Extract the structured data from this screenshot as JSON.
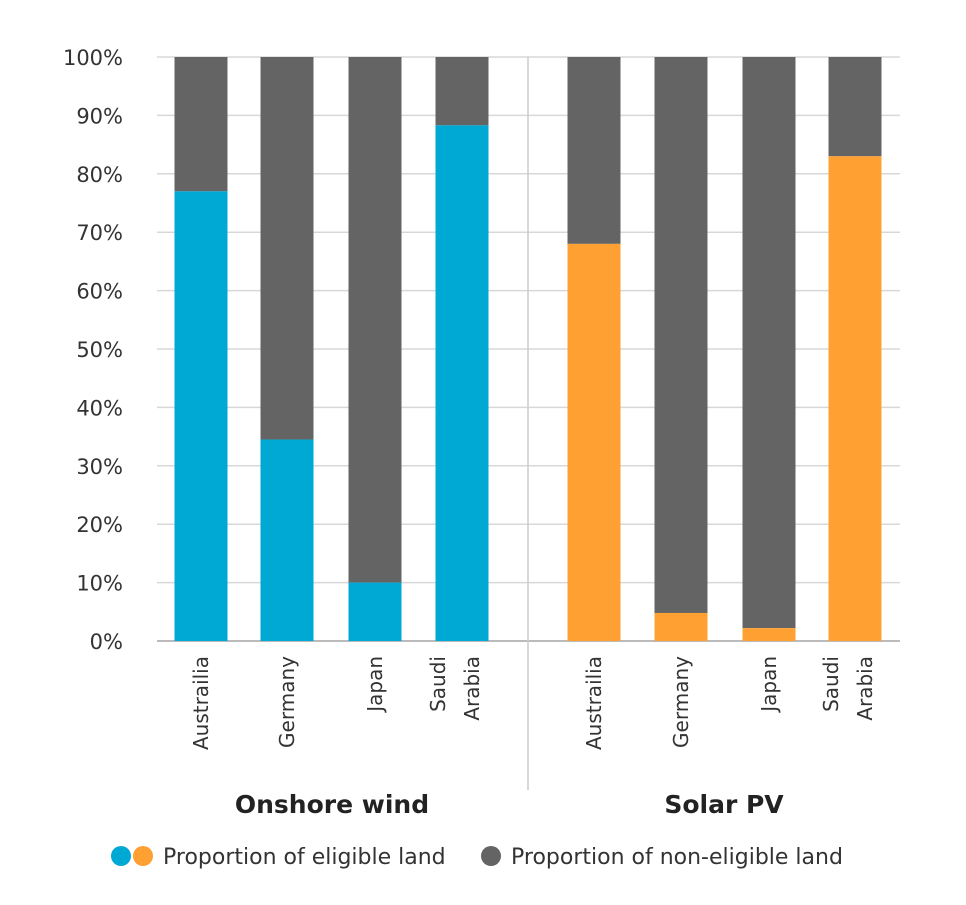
{
  "chart_data": {
    "type": "bar",
    "stacked": true,
    "ylim": [
      0,
      100
    ],
    "yticks": [
      "0%",
      "10%",
      "20%",
      "30%",
      "40%",
      "50%",
      "60%",
      "70%",
      "80%",
      "90%",
      "100%"
    ],
    "grid": true,
    "groups": [
      {
        "label": "Onshore wind",
        "color": "#00A8D4",
        "categories": [
          [
            "Austrailia"
          ],
          [
            "Germany"
          ],
          [
            "Japan"
          ],
          [
            "Saudi",
            "Arabia"
          ]
        ],
        "eligible": [
          77,
          34.5,
          10,
          88.3
        ],
        "non_eligible": [
          23,
          65.5,
          90,
          11.7
        ]
      },
      {
        "label": "Solar PV",
        "color": "#FFA033",
        "categories": [
          [
            "Austrailia"
          ],
          [
            "Germany"
          ],
          [
            "Japan"
          ],
          [
            "Saudi",
            "Arabia"
          ]
        ],
        "eligible": [
          68,
          4.8,
          2.2,
          83
        ],
        "non_eligible": [
          32,
          95.2,
          97.8,
          17
        ]
      }
    ],
    "non_eligible_color": "#646464",
    "legend": {
      "position": "bottom",
      "eligible": "Proportion of eligible land",
      "non_eligible": "Proportion of non-eligible land"
    }
  }
}
